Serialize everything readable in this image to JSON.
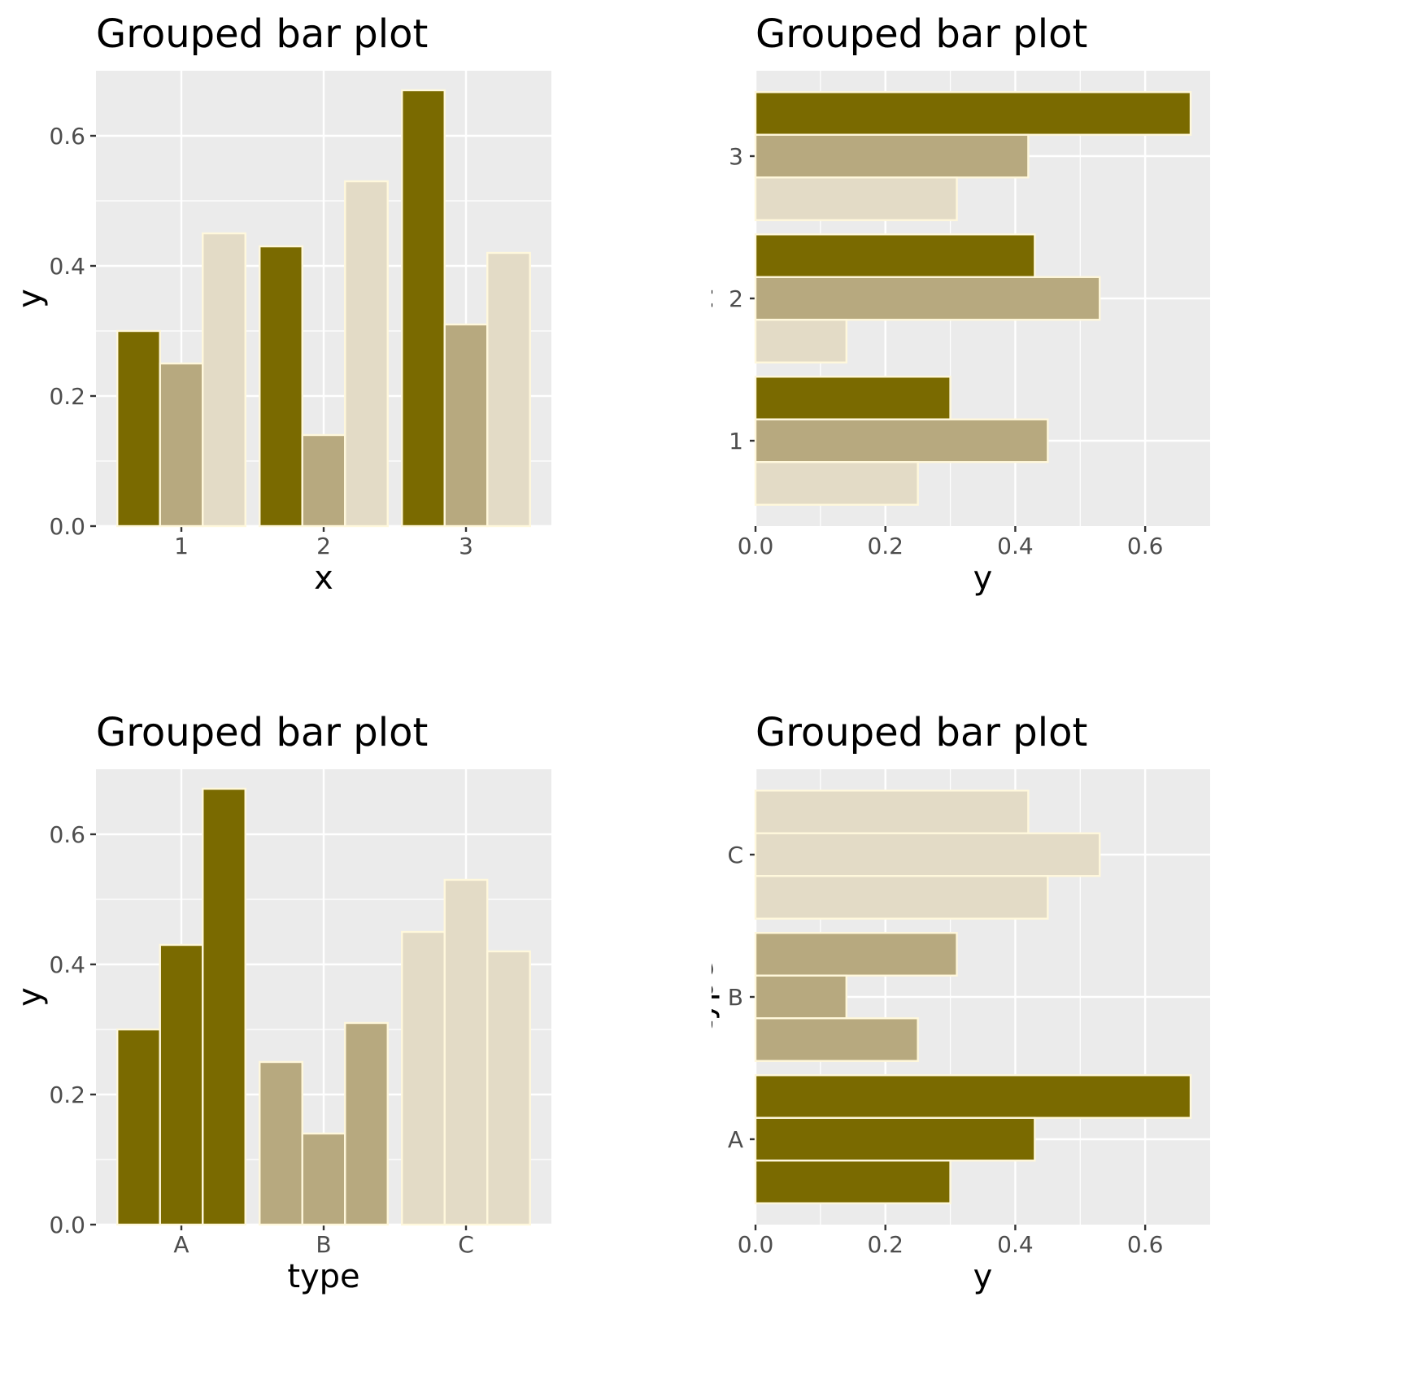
{
  "palette": {
    "dark": "#7a6a00",
    "mid": "#b7a97f",
    "light": "#e3dbc6",
    "panel_background": "#ebebeb",
    "bar_outline": "#fff8dc"
  },
  "chart_data": [
    {
      "type": "bar",
      "orientation": "vertical",
      "title": "Grouped bar plot",
      "xlabel": "x",
      "ylabel": "y",
      "categories": [
        "1",
        "2",
        "3"
      ],
      "ylim": [
        0,
        0.7
      ],
      "ticks": [
        "0.0",
        "0.2",
        "0.4",
        "0.6"
      ],
      "grid": true,
      "bar_fill_by": "series",
      "series": [
        {
          "values": [
            0.3,
            0.43,
            0.67
          ]
        },
        {
          "values": [
            0.25,
            0.14,
            0.31
          ]
        },
        {
          "values": [
            0.45,
            0.53,
            0.42
          ]
        }
      ]
    },
    {
      "type": "bar",
      "orientation": "horizontal",
      "title": "Grouped bar plot",
      "xlabel": "y",
      "ylabel": "x",
      "categories": [
        "1",
        "2",
        "3"
      ],
      "ylim": [
        0,
        0.7
      ],
      "ticks": [
        "0.0",
        "0.2",
        "0.4",
        "0.6"
      ],
      "grid": true,
      "bar_fill_by": "series",
      "series": [
        {
          "values": [
            0.3,
            0.43,
            0.67
          ]
        },
        {
          "values": [
            0.45,
            0.53,
            0.42
          ]
        },
        {
          "values": [
            0.25,
            0.14,
            0.31
          ]
        }
      ]
    },
    {
      "type": "bar",
      "orientation": "vertical",
      "title": "Grouped bar plot",
      "xlabel": "type",
      "ylabel": "y",
      "categories": [
        "A",
        "B",
        "C"
      ],
      "ylim": [
        0,
        0.7
      ],
      "ticks": [
        "0.0",
        "0.2",
        "0.4",
        "0.6"
      ],
      "grid": true,
      "bar_fill_by": "category",
      "series": [
        {
          "values": [
            0.3,
            0.25,
            0.45
          ]
        },
        {
          "values": [
            0.43,
            0.14,
            0.53
          ]
        },
        {
          "values": [
            0.67,
            0.31,
            0.42
          ]
        }
      ]
    },
    {
      "type": "bar",
      "orientation": "horizontal",
      "title": "Grouped bar plot",
      "xlabel": "y",
      "ylabel": "type",
      "categories": [
        "A",
        "B",
        "C"
      ],
      "ylim": [
        0,
        0.7
      ],
      "ticks": [
        "0.0",
        "0.2",
        "0.4",
        "0.6"
      ],
      "grid": true,
      "bar_fill_by": "category",
      "series": [
        {
          "values": [
            0.67,
            0.31,
            0.42
          ]
        },
        {
          "values": [
            0.43,
            0.14,
            0.53
          ]
        },
        {
          "values": [
            0.3,
            0.25,
            0.45
          ]
        }
      ]
    }
  ]
}
